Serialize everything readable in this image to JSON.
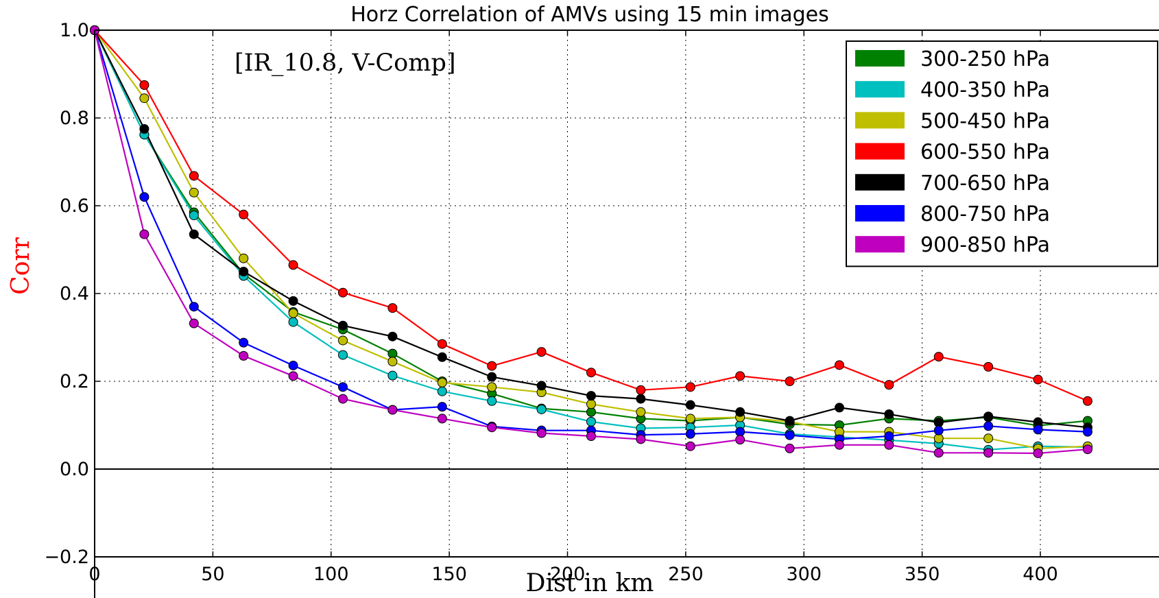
{
  "chart_data": {
    "type": "line",
    "title": "Horz Correlation of AMVs using 15 min images",
    "annotation": "[IR_10.8, V-Comp]",
    "xlabel": "Dist in km",
    "ylabel": "Corr",
    "ylabel_color": "#ff0000",
    "xlim": [
      0,
      420
    ],
    "ylim": [
      -0.2,
      1.0
    ],
    "grid": true,
    "legend_position": "top-right",
    "x_ticks": [
      0,
      50,
      100,
      150,
      200,
      250,
      300,
      350,
      400
    ],
    "x_tick_labels": [
      "0",
      "50",
      "100",
      "150",
      "200",
      "250",
      "300",
      "350",
      "400"
    ],
    "y_ticks": [
      -0.2,
      0.0,
      0.2,
      0.4,
      0.6,
      0.8,
      1.0
    ],
    "y_tick_labels": [
      "−0.2",
      "0.0",
      "0.2",
      "0.4",
      "0.6",
      "0.8",
      "1.0"
    ],
    "x": [
      0,
      21,
      42,
      63,
      84,
      105,
      126,
      147,
      168,
      189,
      210,
      231,
      252,
      273,
      294,
      315,
      336,
      357,
      378,
      399,
      420
    ],
    "series": [
      {
        "name": "300-250 hPa",
        "color": "#008000",
        "values": [
          1.0,
          0.762,
          0.585,
          0.445,
          0.358,
          0.318,
          0.263,
          0.2,
          0.172,
          0.138,
          0.13,
          0.115,
          0.11,
          0.118,
          0.102,
          0.1,
          0.115,
          0.11,
          0.118,
          0.099,
          0.11
        ]
      },
      {
        "name": "400-350 hPa",
        "color": "#00bfbf",
        "values": [
          1.0,
          0.762,
          0.578,
          0.44,
          0.335,
          0.26,
          0.213,
          0.177,
          0.155,
          0.136,
          0.108,
          0.093,
          0.095,
          0.1,
          0.08,
          0.073,
          0.066,
          0.058,
          0.044,
          0.052,
          0.05
        ]
      },
      {
        "name": "500-450 hPa",
        "color": "#bfbf00",
        "values": [
          1.0,
          0.845,
          0.63,
          0.48,
          0.355,
          0.293,
          0.245,
          0.197,
          0.187,
          0.175,
          0.148,
          0.13,
          0.115,
          0.118,
          0.108,
          0.085,
          0.085,
          0.07,
          0.07,
          0.047,
          0.052
        ]
      },
      {
        "name": "600-550 hPa",
        "color": "#ff0000",
        "values": [
          1.0,
          0.875,
          0.668,
          0.58,
          0.465,
          0.402,
          0.367,
          0.285,
          0.235,
          0.267,
          0.22,
          0.18,
          0.187,
          0.212,
          0.2,
          0.237,
          0.192,
          0.256,
          0.233,
          0.204,
          0.155
        ]
      },
      {
        "name": "700-650 hPa",
        "color": "#000000",
        "values": [
          1.0,
          0.775,
          0.535,
          0.45,
          0.383,
          0.327,
          0.302,
          0.255,
          0.21,
          0.19,
          0.167,
          0.16,
          0.146,
          0.13,
          0.11,
          0.14,
          0.125,
          0.106,
          0.12,
          0.107,
          0.095
        ]
      },
      {
        "name": "800-750 hPa",
        "color": "#0000ff",
        "values": [
          1.0,
          0.62,
          0.37,
          0.288,
          0.236,
          0.187,
          0.135,
          0.142,
          0.097,
          0.088,
          0.088,
          0.078,
          0.08,
          0.085,
          0.077,
          0.068,
          0.075,
          0.088,
          0.098,
          0.09,
          0.085
        ]
      },
      {
        "name": "900-850 hPa",
        "color": "#bf00bf",
        "values": [
          1.0,
          0.535,
          0.332,
          0.258,
          0.212,
          0.16,
          0.135,
          0.115,
          0.095,
          0.082,
          0.075,
          0.068,
          0.052,
          0.067,
          0.047,
          0.055,
          0.055,
          0.037,
          0.037,
          0.036,
          0.045
        ]
      }
    ]
  }
}
